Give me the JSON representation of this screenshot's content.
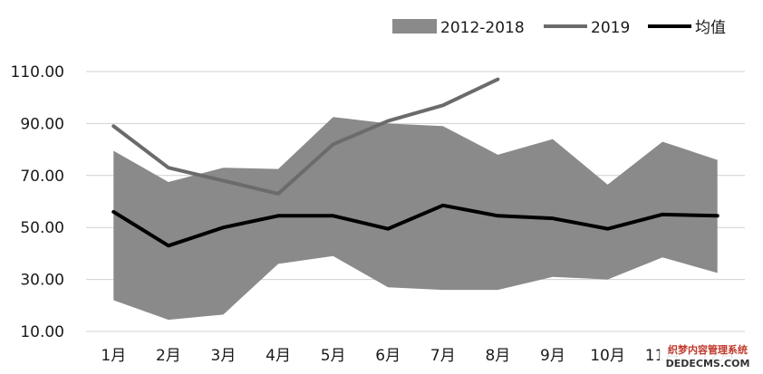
{
  "chart_data": {
    "type": "line",
    "categories": [
      "1月",
      "2月",
      "3月",
      "4月",
      "5月",
      "6月",
      "7月",
      "8月",
      "9月",
      "10月",
      "11月",
      "12月"
    ],
    "range_band": {
      "name": "2012-2018",
      "upper": [
        79.5,
        67.5,
        73,
        72.5,
        92.5,
        90,
        89,
        78,
        84,
        66.5,
        83,
        76
      ],
      "lower": [
        22,
        14.5,
        16.5,
        36,
        39,
        27,
        26,
        26,
        31,
        30,
        38.5,
        32.5
      ]
    },
    "series": [
      {
        "name": "2019",
        "values": [
          89,
          73,
          68,
          63,
          82,
          91,
          97,
          107,
          null,
          null,
          null,
          null
        ]
      },
      {
        "name": "均值",
        "values": [
          56,
          43,
          50,
          54.5,
          54.5,
          49.5,
          58.5,
          54.5,
          53.5,
          49.5,
          55,
          54.5
        ]
      }
    ],
    "yaxis": {
      "ticks": [
        "10.00",
        "30.00",
        "50.00",
        "70.00",
        "90.00",
        "110.00"
      ],
      "ylim": [
        10,
        110
      ]
    },
    "grid": true,
    "legend": "top-right",
    "colors": {
      "band": "#8a8a8a",
      "series_2019": "#6b6b6b",
      "series_mean": "#000000",
      "grid": "#d0d0d0"
    }
  },
  "watermark": {
    "line1": "织梦内容管理系统",
    "line2": "DEDECMS.COM"
  }
}
